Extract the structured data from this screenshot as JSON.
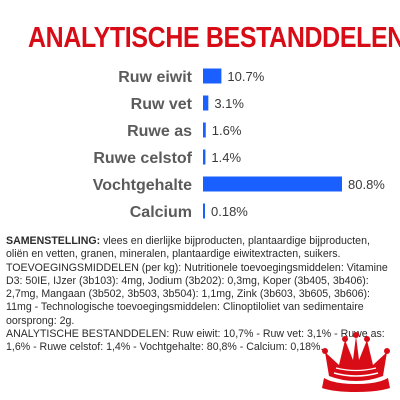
{
  "chart_data": {
    "type": "bar",
    "title": "ANALYTISCHE BESTANDDELEN",
    "categories": [
      "Ruw eiwit",
      "Ruw vet",
      "Ruwe as",
      "Ruwe celstof",
      "Vochtgehalte",
      "Calcium"
    ],
    "values": [
      10.7,
      3.1,
      1.6,
      1.4,
      80.8,
      0.18
    ],
    "value_labels": [
      "10.7%",
      "3.1%",
      "1.6%",
      "1.4%",
      "80.8%",
      "0.18%"
    ],
    "orientation": "horizontal",
    "bar_color": "#1a5fff",
    "xlim": [
      0,
      80.8
    ],
    "grid": false
  },
  "composition": {
    "heading": "SAMENSTELLING:",
    "text": "vlees en dierlijke bijproducten, plantaardige bijproducten, oliën en vetten, granen, mineralen, plantaardige eiwitextracten, suikers.",
    "additives": "TOEVOEGINGSMIDDELEN (per kg): Nutritionele toevoegingsmiddelen: Vitamine D3: 50IE, IJzer (3b103): 4mg, Jodium (3b202): 0,3mg, Koper (3b405, 3b406): 2,7mg, Mangaan (3b502, 3b503, 3b504): 1,1mg, Zink (3b603, 3b605, 3b606): 11mg - Technologische toevoegingsmiddelen: Clinoptiloliet van sedimentaire oorsprong: 2g.",
    "analysis": "ANALYTISCHE BESTANDDELEN: Ruw eiwit: 10,7% - Ruw vet: 3,1% - Ruwe as: 1,6% - Ruwe celstof: 1,4% - Vochtgehalte: 80,8% - Calcium: 0,18%."
  },
  "logo": {
    "brand_color": "#d80c17"
  }
}
